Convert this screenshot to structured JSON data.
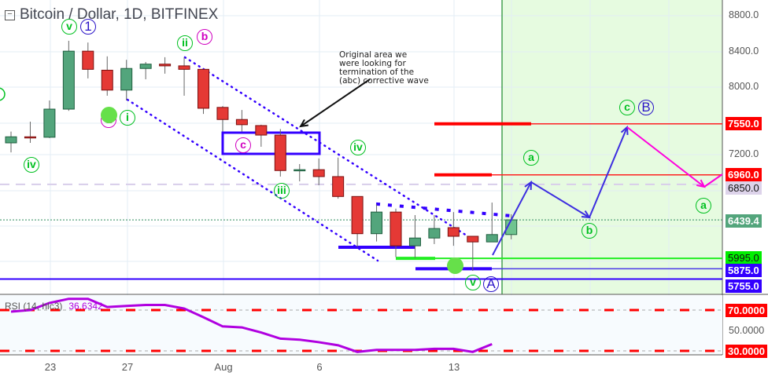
{
  "header": {
    "title": "Bitcoin / Dollar, 1D, BITFINEX",
    "collapse_icon": "minus-square-icon"
  },
  "annotation": {
    "lines": [
      "Original area we",
      "were looking for",
      "termination of the",
      "(abc) corrective wave"
    ]
  },
  "price_axis": {
    "ticks": [
      "8800.0",
      "8400.0",
      "8000.0",
      "7200.0"
    ]
  },
  "price_labels": [
    {
      "value": "7550.0",
      "color": "#ff0000"
    },
    {
      "value": "6960.0",
      "color": "#ff0000"
    },
    {
      "value": "6850.0",
      "color": "#ddd3ea"
    },
    {
      "value": "6439.4",
      "color": "#53a57c"
    },
    {
      "value": "5995.0",
      "color": "#00ee00"
    },
    {
      "value": "5875.0",
      "color": "#3300ff"
    },
    {
      "value": "5755.0",
      "color": "#3300ff"
    }
  ],
  "rsi": {
    "label": "RSI (14, hlc3)",
    "value": "36.6342",
    "levels": [
      "70.0000",
      "50.0000",
      "30.0000"
    ],
    "color": "#b000e0",
    "values": [
      68.5,
      70,
      77,
      81,
      81,
      73,
      74,
      75,
      75,
      71.5,
      63,
      54,
      53,
      48,
      42,
      41,
      38.5,
      35.5,
      29,
      31,
      31,
      31,
      32,
      32,
      29,
      36.6342
    ]
  },
  "wave_labels": {
    "v1": "v",
    "one": "1",
    "ii": "ii",
    "b1": "b",
    "iv1": "iv",
    "a1": "a",
    "i": "i",
    "c1": "c",
    "iii": "iii",
    "iv2": "iv",
    "v2": "v",
    "A": "A",
    "a2": "a",
    "b2": "b",
    "c2": "c",
    "B": "B",
    "a3": "a"
  },
  "chart_data": {
    "type": "candlestick",
    "title": "Bitcoin / Dollar, 1D, BITFINEX",
    "x_tick_labels": [
      "23",
      "27",
      "Aug",
      "6",
      "13"
    ],
    "ylim": [
      5600,
      8900
    ],
    "grid": true,
    "colors": {
      "up": "#53a57c",
      "down": "#e53935",
      "projection_up": "#3d2ee0",
      "projection_down": "#ff00dd",
      "target_zone": "#e6fbe0"
    },
    "candles": [
      {
        "o": 7330,
        "h": 7460,
        "l": 7220,
        "c": 7400
      },
      {
        "o": 7400,
        "h": 7575,
        "l": 7330,
        "c": 7390
      },
      {
        "o": 7395,
        "h": 7820,
        "l": 7385,
        "c": 7720
      },
      {
        "o": 7720,
        "h": 8510,
        "l": 7700,
        "c": 8390
      },
      {
        "o": 8390,
        "h": 8490,
        "l": 8075,
        "c": 8180
      },
      {
        "o": 8170,
        "h": 8330,
        "l": 7875,
        "c": 7940
      },
      {
        "o": 7940,
        "h": 8290,
        "l": 7820,
        "c": 8190
      },
      {
        "o": 8190,
        "h": 8265,
        "l": 8065,
        "c": 8240
      },
      {
        "o": 8240,
        "h": 8320,
        "l": 8130,
        "c": 8220
      },
      {
        "o": 8220,
        "h": 8320,
        "l": 7875,
        "c": 8180
      },
      {
        "o": 8180,
        "h": 8180,
        "l": 7665,
        "c": 7730
      },
      {
        "o": 7740,
        "h": 7755,
        "l": 7460,
        "c": 7600
      },
      {
        "o": 7600,
        "h": 7710,
        "l": 7460,
        "c": 7540
      },
      {
        "o": 7530,
        "h": 7540,
        "l": 7285,
        "c": 7420
      },
      {
        "o": 7420,
        "h": 7490,
        "l": 6940,
        "c": 7010
      },
      {
        "o": 7010,
        "h": 7085,
        "l": 6885,
        "c": 7020
      },
      {
        "o": 7020,
        "h": 7150,
        "l": 6840,
        "c": 6940
      },
      {
        "o": 6940,
        "h": 7160,
        "l": 6685,
        "c": 6710
      },
      {
        "o": 6710,
        "h": 6710,
        "l": 6125,
        "c": 6280
      },
      {
        "o": 6280,
        "h": 6620,
        "l": 6190,
        "c": 6530
      },
      {
        "o": 6530,
        "h": 6570,
        "l": 6010,
        "c": 6140
      },
      {
        "o": 6140,
        "h": 6495,
        "l": 6000,
        "c": 6230
      },
      {
        "o": 6230,
        "h": 6495,
        "l": 6160,
        "c": 6340
      },
      {
        "o": 6350,
        "h": 6530,
        "l": 6140,
        "c": 6250
      },
      {
        "o": 6250,
        "h": 6250,
        "l": 5850,
        "c": 6185
      },
      {
        "o": 6185,
        "h": 6640,
        "l": 6185,
        "c": 6270
      },
      {
        "o": 6270,
        "h": 6505,
        "l": 6215,
        "c": 6440
      }
    ],
    "horizontal_levels": [
      7550,
      6960,
      6850,
      6439.4,
      5995,
      5875,
      5755
    ]
  }
}
